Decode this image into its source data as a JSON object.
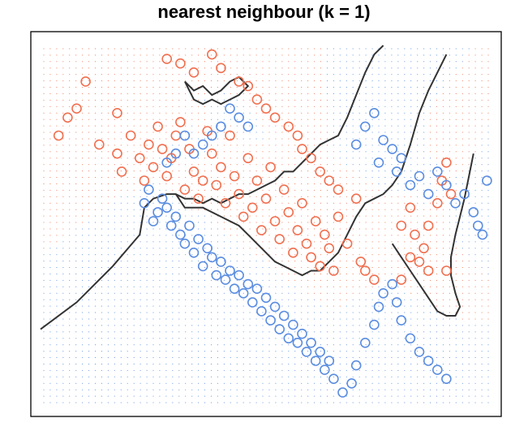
{
  "chart_data": {
    "type": "scatter",
    "title": "nearest neighbour (k = 1)",
    "xlabel": "",
    "ylabel": "",
    "xlim": [
      0,
      100
    ],
    "ylim": [
      0,
      80
    ],
    "axes_visible": false,
    "grid": false,
    "box": true,
    "background": "dotted decision-region grid coloured by class",
    "colors": {
      "class_a": "#F07050",
      "class_b": "#5B8DE0",
      "boundary": "#333333",
      "frame": "#000000"
    },
    "decision_boundary": [
      {
        "name": "left-boundary",
        "points": [
          [
            0,
            17
          ],
          [
            8,
            23
          ],
          [
            16,
            31
          ],
          [
            22,
            38
          ],
          [
            23,
            44
          ],
          [
            25,
            46
          ],
          [
            28,
            47
          ],
          [
            30,
            47
          ],
          [
            32,
            46
          ],
          [
            34,
            46
          ],
          [
            36,
            45
          ],
          [
            38,
            46
          ],
          [
            40,
            45
          ],
          [
            42,
            46
          ],
          [
            44,
            47
          ],
          [
            46,
            47
          ],
          [
            48,
            48
          ],
          [
            50,
            49
          ],
          [
            52,
            50
          ],
          [
            54,
            52
          ],
          [
            56,
            52
          ],
          [
            58,
            54
          ],
          [
            60,
            56
          ],
          [
            62,
            58
          ],
          [
            64,
            59
          ],
          [
            66,
            60
          ],
          [
            68,
            64
          ],
          [
            70,
            69
          ],
          [
            72,
            74
          ],
          [
            74,
            78
          ],
          [
            76,
            80
          ]
        ]
      },
      {
        "name": "lower-boundary",
        "points": [
          [
            30,
            47
          ],
          [
            32,
            44
          ],
          [
            36,
            44
          ],
          [
            40,
            42
          ],
          [
            44,
            40
          ],
          [
            46,
            38
          ],
          [
            48,
            36
          ],
          [
            50,
            34
          ],
          [
            52,
            32
          ],
          [
            54,
            31
          ],
          [
            56,
            30
          ],
          [
            58,
            29
          ],
          [
            60,
            30
          ],
          [
            62,
            30
          ],
          [
            64,
            32
          ],
          [
            66,
            34
          ],
          [
            68,
            38
          ],
          [
            70,
            42
          ],
          [
            72,
            45
          ],
          [
            74,
            46
          ],
          [
            76,
            47
          ],
          [
            78,
            49
          ],
          [
            80,
            52
          ],
          [
            82,
            58
          ],
          [
            84,
            65
          ],
          [
            86,
            70
          ],
          [
            88,
            74
          ],
          [
            90,
            78
          ]
        ]
      },
      {
        "name": "right-region-boundary",
        "points": [
          [
            78,
            36
          ],
          [
            80,
            33
          ],
          [
            82,
            30
          ],
          [
            84,
            27
          ],
          [
            86,
            24
          ],
          [
            88,
            21
          ],
          [
            90,
            20
          ],
          [
            92,
            20
          ],
          [
            93,
            22
          ],
          [
            92,
            25
          ],
          [
            91,
            29
          ],
          [
            91,
            33
          ],
          [
            92,
            38
          ],
          [
            93,
            42
          ],
          [
            94,
            46
          ],
          [
            95,
            51
          ],
          [
            96,
            56
          ]
        ]
      },
      {
        "name": "top-island",
        "points": [
          [
            32,
            72
          ],
          [
            34,
            70
          ],
          [
            36,
            71
          ],
          [
            38,
            69
          ],
          [
            40,
            70
          ],
          [
            42,
            72
          ],
          [
            44,
            73
          ],
          [
            46,
            71
          ],
          [
            44,
            69
          ],
          [
            42,
            68
          ],
          [
            40,
            67
          ],
          [
            38,
            68
          ],
          [
            36,
            67
          ],
          [
            34,
            68
          ],
          [
            32,
            72
          ]
        ]
      }
    ],
    "series": [
      {
        "points": [
          [
            4,
            60
          ],
          [
            6,
            64
          ],
          [
            10,
            72
          ],
          [
            8,
            66
          ],
          [
            13,
            58
          ],
          [
            17,
            65
          ],
          [
            17,
            56
          ],
          [
            18,
            52
          ],
          [
            20,
            60
          ],
          [
            22,
            55
          ],
          [
            23,
            50
          ],
          [
            24,
            58
          ],
          [
            25,
            53
          ],
          [
            26,
            62
          ],
          [
            27,
            57
          ],
          [
            28,
            51
          ],
          [
            29,
            55
          ],
          [
            30,
            60
          ],
          [
            31,
            63
          ],
          [
            32,
            48
          ],
          [
            33,
            57
          ],
          [
            34,
            52
          ],
          [
            35,
            46
          ],
          [
            36,
            50
          ],
          [
            37,
            61
          ],
          [
            38,
            56
          ],
          [
            39,
            49
          ],
          [
            40,
            53
          ],
          [
            41,
            45
          ],
          [
            42,
            60
          ],
          [
            43,
            51
          ],
          [
            44,
            47
          ],
          [
            45,
            42
          ],
          [
            46,
            55
          ],
          [
            47,
            44
          ],
          [
            48,
            50
          ],
          [
            49,
            39
          ],
          [
            50,
            46
          ],
          [
            51,
            53
          ],
          [
            52,
            41
          ],
          [
            53,
            37
          ],
          [
            54,
            48
          ],
          [
            55,
            43
          ],
          [
            56,
            34
          ],
          [
            57,
            39
          ],
          [
            58,
            45
          ],
          [
            59,
            36
          ],
          [
            60,
            33
          ],
          [
            61,
            41
          ],
          [
            62,
            31
          ],
          [
            63,
            38
          ],
          [
            64,
            35
          ],
          [
            65,
            30
          ],
          [
            66,
            42
          ],
          [
            68,
            36
          ],
          [
            71,
            32
          ],
          [
            72,
            30
          ],
          [
            74,
            28
          ],
          [
            80,
            28
          ],
          [
            82,
            33
          ],
          [
            83,
            38
          ],
          [
            84,
            32
          ],
          [
            85,
            35
          ],
          [
            86,
            40
          ],
          [
            88,
            45
          ],
          [
            89,
            50
          ],
          [
            90,
            54
          ],
          [
            91,
            47
          ],
          [
            80,
            40
          ],
          [
            82,
            44
          ],
          [
            86,
            30
          ],
          [
            90,
            30
          ],
          [
            28,
            77
          ],
          [
            31,
            76
          ],
          [
            34,
            74
          ],
          [
            38,
            78
          ],
          [
            40,
            75
          ],
          [
            44,
            72
          ],
          [
            46,
            71
          ],
          [
            48,
            68
          ],
          [
            50,
            66
          ],
          [
            52,
            64
          ],
          [
            55,
            62
          ],
          [
            57,
            60
          ],
          [
            58,
            57
          ],
          [
            60,
            55
          ],
          [
            62,
            52
          ],
          [
            64,
            50
          ],
          [
            66,
            48
          ],
          [
            70,
            46
          ]
        ],
        "color": "#F07050"
      },
      {
        "points": [
          [
            23,
            45
          ],
          [
            24,
            48
          ],
          [
            25,
            41
          ],
          [
            26,
            43
          ],
          [
            27,
            46
          ],
          [
            28,
            44
          ],
          [
            29,
            40
          ],
          [
            30,
            42
          ],
          [
            31,
            38
          ],
          [
            32,
            36
          ],
          [
            33,
            40
          ],
          [
            34,
            34
          ],
          [
            35,
            37
          ],
          [
            36,
            31
          ],
          [
            37,
            35
          ],
          [
            38,
            33
          ],
          [
            39,
            29
          ],
          [
            40,
            32
          ],
          [
            41,
            28
          ],
          [
            42,
            30
          ],
          [
            43,
            26
          ],
          [
            44,
            29
          ],
          [
            45,
            25
          ],
          [
            46,
            27
          ],
          [
            47,
            23
          ],
          [
            48,
            26
          ],
          [
            49,
            21
          ],
          [
            50,
            24
          ],
          [
            51,
            19
          ],
          [
            52,
            22
          ],
          [
            53,
            17
          ],
          [
            54,
            20
          ],
          [
            55,
            15
          ],
          [
            56,
            18
          ],
          [
            57,
            14
          ],
          [
            58,
            16
          ],
          [
            59,
            12
          ],
          [
            60,
            14
          ],
          [
            61,
            10
          ],
          [
            62,
            12
          ],
          [
            63,
            8
          ],
          [
            64,
            10
          ],
          [
            65,
            6
          ],
          [
            67,
            3
          ],
          [
            69,
            5
          ],
          [
            70,
            9
          ],
          [
            72,
            14
          ],
          [
            74,
            18
          ],
          [
            75,
            22
          ],
          [
            76,
            25
          ],
          [
            78,
            27
          ],
          [
            79,
            23
          ],
          [
            80,
            19
          ],
          [
            82,
            15
          ],
          [
            84,
            12
          ],
          [
            86,
            10
          ],
          [
            88,
            8
          ],
          [
            90,
            6
          ],
          [
            70,
            58
          ],
          [
            72,
            62
          ],
          [
            74,
            65
          ],
          [
            75,
            54
          ],
          [
            76,
            59
          ],
          [
            78,
            57
          ],
          [
            79,
            52
          ],
          [
            80,
            55
          ],
          [
            82,
            49
          ],
          [
            84,
            51
          ],
          [
            86,
            47
          ],
          [
            88,
            52
          ],
          [
            90,
            49
          ],
          [
            92,
            45
          ],
          [
            94,
            47
          ],
          [
            96,
            43
          ],
          [
            97,
            40
          ],
          [
            98,
            38
          ],
          [
            99,
            50
          ],
          [
            44,
            64
          ],
          [
            46,
            62
          ],
          [
            42,
            66
          ],
          [
            40,
            62
          ],
          [
            38,
            60
          ],
          [
            36,
            58
          ],
          [
            34,
            56
          ],
          [
            32,
            60
          ],
          [
            30,
            56
          ],
          [
            28,
            54
          ]
        ],
        "color": "#5B8DE0"
      }
    ]
  }
}
